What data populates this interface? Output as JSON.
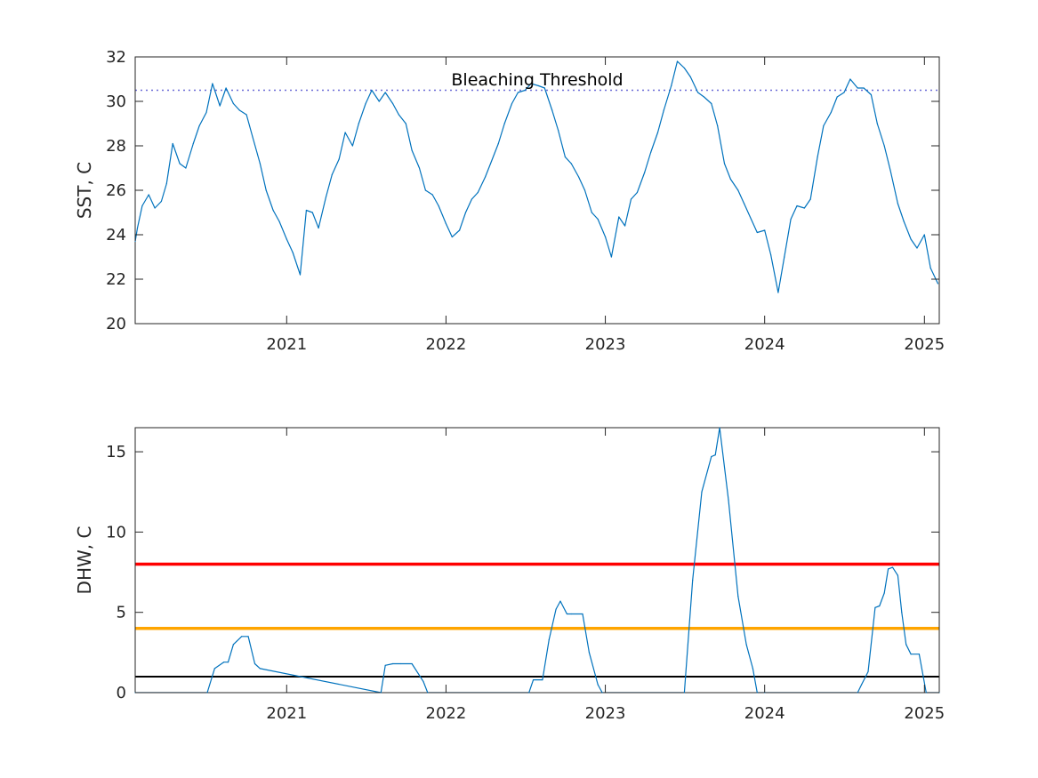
{
  "chart_data": [
    {
      "type": "line",
      "title": "",
      "xlabel": "",
      "ylabel": "SST, C",
      "xlim": [
        "2020-01-20",
        "2025-02-04"
      ],
      "ylim": [
        20,
        32
      ],
      "xticks": [
        "2021",
        "2022",
        "2023",
        "2024",
        "2025"
      ],
      "yticks": [
        "20",
        "22",
        "24",
        "26",
        "28",
        "30",
        "32"
      ],
      "grid": false,
      "annotation": "Bleaching Threshold",
      "threshold": {
        "value": 30.5,
        "style": "dotted",
        "color": "#6a6ad6"
      },
      "series_color": "#0072bd",
      "series": [
        {
          "x": [
            "2020-01-20",
            "2020-01-25",
            "2020-02-05",
            "2020-02-20",
            "2020-03-05",
            "2020-03-20",
            "2020-04-01",
            "2020-04-15",
            "2020-05-01",
            "2020-05-15",
            "2020-06-01",
            "2020-06-15",
            "2020-07-01",
            "2020-07-15",
            "2020-08-01",
            "2020-08-15",
            "2020-09-01",
            "2020-09-15",
            "2020-10-01",
            "2020-10-15",
            "2020-11-01",
            "2020-11-15",
            "2020-12-01",
            "2020-12-15",
            "2021-01-01",
            "2021-01-15",
            "2021-02-01",
            "2021-02-15",
            "2021-03-01",
            "2021-03-15",
            "2021-04-01",
            "2021-04-15",
            "2021-05-01",
            "2021-05-15",
            "2021-06-01",
            "2021-06-15",
            "2021-07-01",
            "2021-07-15",
            "2021-08-01",
            "2021-08-15",
            "2021-09-01",
            "2021-09-15",
            "2021-10-01",
            "2021-10-15",
            "2021-11-01",
            "2021-11-15",
            "2021-12-01",
            "2021-12-15",
            "2022-01-01",
            "2022-01-15",
            "2022-02-01",
            "2022-02-15",
            "2022-03-01",
            "2022-03-15",
            "2022-04-01",
            "2022-04-15",
            "2022-05-01",
            "2022-05-15",
            "2022-06-01",
            "2022-06-15",
            "2022-07-01",
            "2022-07-15",
            "2022-08-01",
            "2022-08-15",
            "2022-09-01",
            "2022-09-15",
            "2022-10-01",
            "2022-10-15",
            "2022-11-01",
            "2022-11-15",
            "2022-12-01",
            "2022-12-15",
            "2023-01-01",
            "2023-01-15",
            "2023-02-01",
            "2023-02-15",
            "2023-03-01",
            "2023-03-15",
            "2023-04-01",
            "2023-04-15",
            "2023-05-01",
            "2023-05-15",
            "2023-06-01",
            "2023-06-15",
            "2023-07-01",
            "2023-07-15",
            "2023-08-01",
            "2023-08-15",
            "2023-09-01",
            "2023-09-15",
            "2023-10-01",
            "2023-10-15",
            "2023-11-01",
            "2023-11-15",
            "2023-12-01",
            "2023-12-15",
            "2024-01-01",
            "2024-01-15",
            "2024-02-01",
            "2024-02-15",
            "2024-03-01",
            "2024-03-15",
            "2024-04-01",
            "2024-04-15",
            "2024-05-01",
            "2024-05-15",
            "2024-06-01",
            "2024-06-15",
            "2024-07-01",
            "2024-07-15",
            "2024-08-01",
            "2024-08-15",
            "2024-09-01",
            "2024-09-15",
            "2024-10-01",
            "2024-10-15",
            "2024-11-01",
            "2024-11-15",
            "2024-12-01",
            "2024-12-15",
            "2025-01-01",
            "2025-01-15",
            "2025-02-01"
          ],
          "y": [
            23.7,
            24.3,
            25.3,
            25.8,
            25.2,
            25.5,
            26.3,
            28.1,
            27.2,
            27.0,
            28.1,
            28.9,
            29.5,
            30.8,
            29.8,
            30.6,
            29.9,
            29.6,
            29.4,
            28.4,
            27.2,
            26.0,
            25.1,
            24.6,
            23.8,
            23.2,
            22.2,
            25.1,
            25.0,
            24.3,
            25.7,
            26.7,
            27.4,
            28.6,
            28.0,
            29.0,
            29.9,
            30.5,
            30.0,
            30.4,
            29.9,
            29.4,
            29.0,
            27.8,
            27.0,
            26.0,
            25.8,
            25.3,
            24.5,
            23.9,
            24.2,
            25.0,
            25.6,
            25.9,
            26.6,
            27.3,
            28.1,
            29.0,
            29.9,
            30.4,
            30.5,
            30.8,
            30.7,
            30.6,
            29.6,
            28.7,
            27.5,
            27.2,
            26.6,
            26.0,
            25.0,
            24.7,
            23.9,
            23.0,
            24.8,
            24.4,
            25.6,
            25.9,
            26.8,
            27.7,
            28.6,
            29.6,
            30.7,
            31.8,
            31.5,
            31.1,
            30.4,
            30.2,
            29.9,
            28.9,
            27.2,
            26.5,
            26.0,
            25.4,
            24.7,
            24.1,
            24.2,
            23.1,
            21.4,
            23.0,
            24.7,
            25.3,
            25.2,
            25.6,
            27.5,
            28.9,
            29.5,
            30.2,
            30.4,
            31.0,
            30.6,
            30.6,
            30.3,
            29.0,
            28.0,
            26.9,
            25.4,
            24.6,
            23.8,
            23.4,
            24.0,
            22.5,
            21.8
          ]
        }
      ]
    },
    {
      "type": "line",
      "title": "",
      "xlabel": "",
      "ylabel": "DHW, C",
      "xlim": [
        "2020-01-20",
        "2025-02-04"
      ],
      "ylim": [
        0,
        16.5
      ],
      "xticks": [
        "2021",
        "2022",
        "2023",
        "2024",
        "2025"
      ],
      "yticks": [
        "0",
        "5",
        "10",
        "15"
      ],
      "grid": false,
      "reference_lines": [
        {
          "value": 8,
          "color": "#ff0000"
        },
        {
          "value": 4,
          "color": "#ffa500"
        },
        {
          "value": 1,
          "color": "#000000"
        }
      ],
      "series_color": "#0072bd",
      "series": [
        {
          "x": [
            "2020-01-20",
            "2020-07-03",
            "2020-07-20",
            "2020-08-10",
            "2020-08-20",
            "2020-09-01",
            "2020-09-20",
            "2020-10-05",
            "2020-10-20",
            "2020-11-01",
            "2021-08-05",
            "2021-08-15",
            "2021-09-01",
            "2021-09-20",
            "2021-10-15",
            "2021-11-10",
            "2021-11-20",
            "2022-07-10",
            "2022-07-20",
            "2022-08-10",
            "2022-08-25",
            "2022-09-10",
            "2022-09-20",
            "2022-10-05",
            "2022-10-15",
            "2022-11-10",
            "2022-11-25",
            "2022-12-15",
            "2022-12-25",
            "2023-07-01",
            "2023-07-20",
            "2023-08-10",
            "2023-09-01",
            "2023-09-10",
            "2023-09-20",
            "2023-10-10",
            "2023-11-01",
            "2023-11-20",
            "2023-12-05",
            "2023-12-15",
            "2024-01-01",
            "2024-08-01",
            "2024-08-10",
            "2024-08-25",
            "2024-09-10",
            "2024-09-20",
            "2024-10-01",
            "2024-10-10",
            "2024-10-20",
            "2024-11-01",
            "2024-11-10",
            "2024-11-20",
            "2024-12-01",
            "2024-12-20",
            "2025-01-05",
            "2025-02-04"
          ],
          "y": [
            0,
            0,
            1.5,
            1.9,
            1.9,
            3.0,
            3.5,
            3.5,
            1.8,
            1.5,
            0,
            1.7,
            1.8,
            1.8,
            1.8,
            0.7,
            0,
            0,
            0.8,
            0.8,
            3.3,
            5.2,
            5.7,
            4.9,
            4.9,
            4.9,
            2.5,
            0.5,
            0,
            0,
            7.0,
            12.5,
            14.7,
            14.8,
            16.5,
            12.0,
            6.0,
            3.0,
            1.5,
            0,
            0,
            0,
            0.5,
            1.3,
            5.3,
            5.4,
            6.2,
            7.7,
            7.8,
            7.3,
            5.0,
            3.0,
            2.4,
            2.4,
            0,
            0
          ]
        }
      ]
    }
  ]
}
